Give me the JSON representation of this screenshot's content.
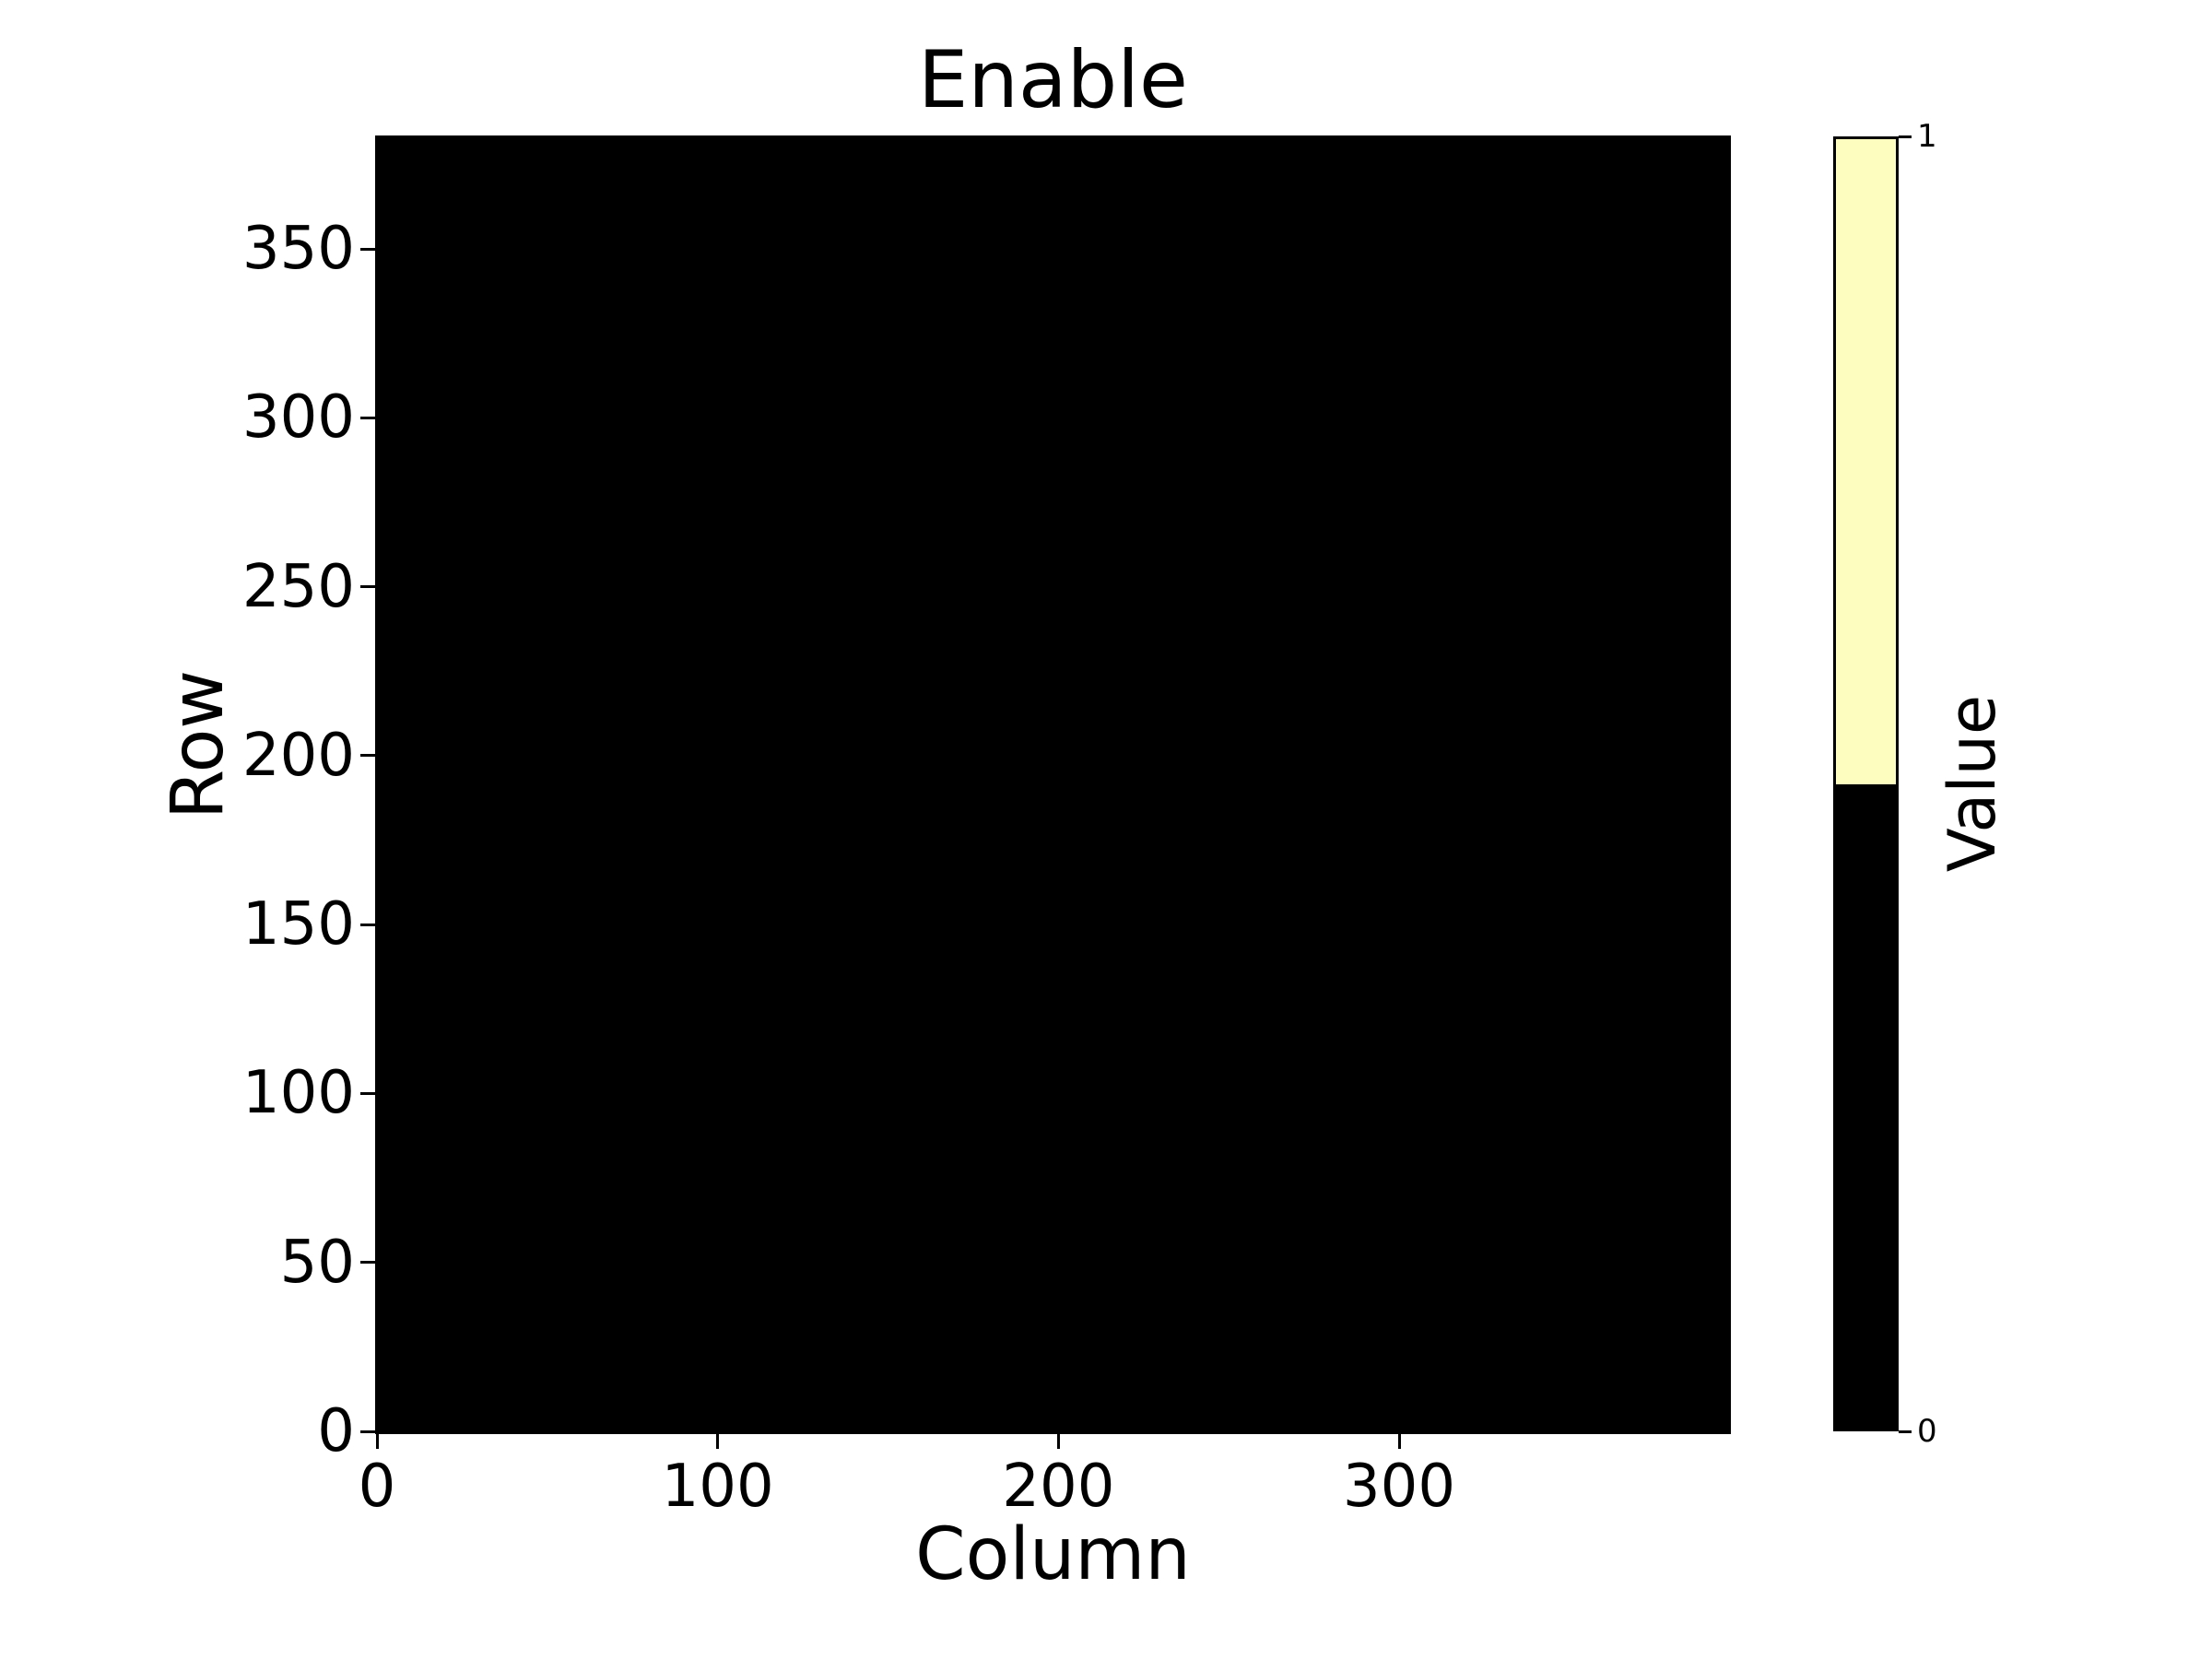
{
  "chart_data": {
    "type": "heatmap",
    "title": "Enable",
    "xlabel": "Column",
    "ylabel": "Row",
    "x_ticks": [
      0,
      100,
      200,
      300
    ],
    "y_ticks": [
      0,
      50,
      100,
      150,
      200,
      250,
      300,
      350
    ],
    "xlim": [
      -0.5,
      397
    ],
    "ylim": [
      -0.5,
      384
    ],
    "grid": false,
    "uniform_value": 0,
    "value_colors": {
      "0": "#000000",
      "1": "#fcfdbf"
    },
    "background_color": "#ffffff",
    "colorbar": {
      "label": "Value",
      "ticks": [
        0,
        1
      ],
      "segments": [
        {
          "from": 0.0,
          "to": 0.5,
          "color": "#000000"
        },
        {
          "from": 0.5,
          "to": 1.0,
          "color": "#fcfdbf"
        }
      ],
      "position": "right"
    }
  }
}
